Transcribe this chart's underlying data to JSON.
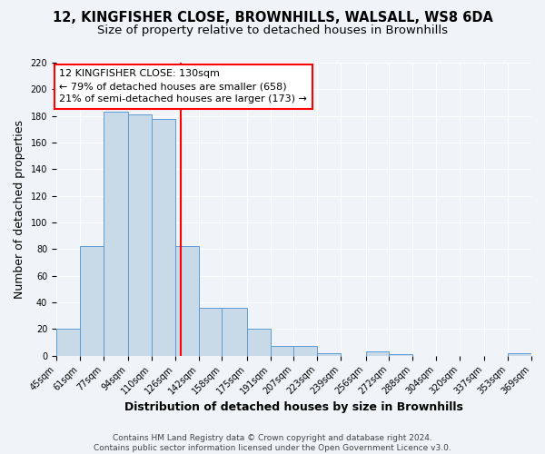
{
  "title": "12, KINGFISHER CLOSE, BROWNHILLS, WALSALL, WS8 6DA",
  "subtitle": "Size of property relative to detached houses in Brownhills",
  "xlabel": "Distribution of detached houses by size in Brownhills",
  "ylabel": "Number of detached properties",
  "bar_edges": [
    45,
    61,
    77,
    94,
    110,
    126,
    142,
    158,
    175,
    191,
    207,
    223,
    239,
    256,
    272,
    288,
    304,
    320,
    337,
    353,
    369
  ],
  "bar_heights": [
    20,
    82,
    183,
    181,
    178,
    82,
    36,
    36,
    20,
    7,
    7,
    2,
    0,
    3,
    1,
    0,
    0,
    0,
    0,
    2
  ],
  "bar_color": "#c8d9e8",
  "bar_edge_color": "#5b9bd5",
  "vline_x": 130,
  "vline_color": "red",
  "ylim": [
    0,
    220
  ],
  "yticks": [
    0,
    20,
    40,
    60,
    80,
    100,
    120,
    140,
    160,
    180,
    200,
    220
  ],
  "tick_labels": [
    "45sqm",
    "61sqm",
    "77sqm",
    "94sqm",
    "110sqm",
    "126sqm",
    "142sqm",
    "158sqm",
    "175sqm",
    "191sqm",
    "207sqm",
    "223sqm",
    "239sqm",
    "256sqm",
    "272sqm",
    "288sqm",
    "304sqm",
    "320sqm",
    "337sqm",
    "353sqm",
    "369sqm"
  ],
  "annotation_title": "12 KINGFISHER CLOSE: 130sqm",
  "annotation_line1": "← 79% of detached houses are smaller (658)",
  "annotation_line2": "21% of semi-detached houses are larger (173) →",
  "annotation_box_color": "red",
  "footer1": "Contains HM Land Registry data © Crown copyright and database right 2024.",
  "footer2": "Contains public sector information licensed under the Open Government Licence v3.0.",
  "bg_color": "#f0f4f8",
  "grid_color": "white",
  "title_fontsize": 10.5,
  "subtitle_fontsize": 9.5,
  "label_fontsize": 9,
  "tick_fontsize": 7,
  "annotation_fontsize": 8,
  "footer_fontsize": 6.5
}
